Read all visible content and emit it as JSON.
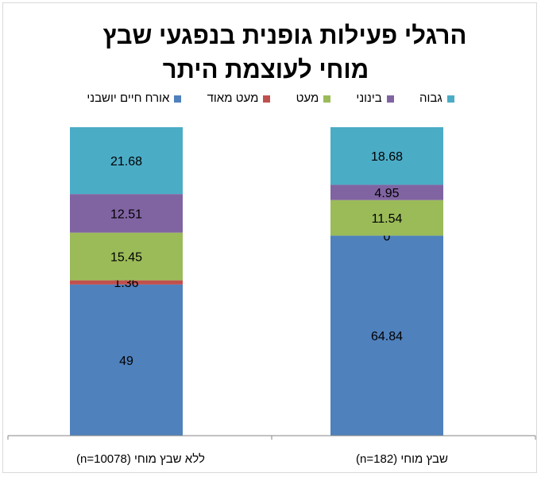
{
  "chart_data": {
    "type": "bar",
    "stacked": true,
    "title": [
      "הרגלי פעילות גופנית בנפגעי שבץ",
      "מוחי לעוצמת היתר"
    ],
    "categories": [
      "שבץ מוחי (n=182)",
      "ללא שבץ מוחי (n=10078)"
    ],
    "series": [
      {
        "name": "אורח חיים יושבני",
        "color": "#4f81bd",
        "values": [
          64.84,
          49
        ]
      },
      {
        "name": "מעט מאוד",
        "color": "#c0504d",
        "values": [
          0,
          1.36
        ]
      },
      {
        "name": "מעט",
        "color": "#9bbb59",
        "values": [
          11.54,
          15.45
        ]
      },
      {
        "name": "בינוני",
        "color": "#8064a2",
        "values": [
          4.95,
          12.51
        ]
      },
      {
        "name": "גבוה",
        "color": "#4bacc6",
        "values": [
          18.68,
          21.68
        ]
      }
    ],
    "legend_order": [
      4,
      3,
      2,
      1,
      0
    ],
    "legend_position": "top",
    "grid": false,
    "ylim": [
      0,
      100
    ]
  }
}
